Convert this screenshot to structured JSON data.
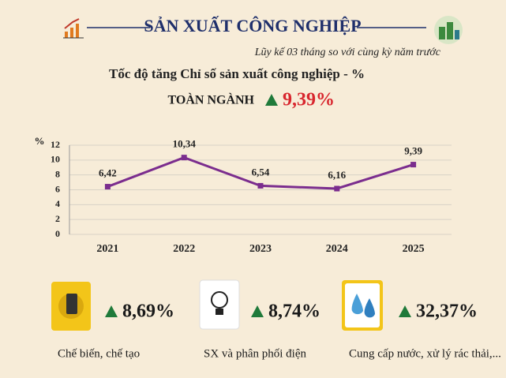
{
  "header": {
    "title": "SẢN XUẤT CÔNG NGHIỆP",
    "subtitle": "Lũy kế 03 tháng so với cùng kỳ năm trước",
    "chart_heading": "Tốc độ tăng Chỉ số sản xuất công nghiệp - %",
    "overall_label": "TOÀN NGÀNH",
    "overall_value": "9,39%"
  },
  "chart_data": {
    "type": "line",
    "y_label": "%",
    "categories": [
      "2021",
      "2022",
      "2023",
      "2024",
      "2025"
    ],
    "values": [
      6.42,
      10.34,
      6.54,
      6.16,
      9.39
    ],
    "value_labels": [
      "6,42",
      "10,34",
      "6,54",
      "6,16",
      "9,39"
    ],
    "color": "#7b2d8e",
    "ylim": [
      0,
      12
    ],
    "yticks": [
      0,
      2,
      4,
      6,
      8,
      10,
      12
    ],
    "grid": true
  },
  "sectors": [
    {
      "label": "Chế biến, chế tạo",
      "value": "8,69%"
    },
    {
      "label": "SX và phân phối điện",
      "value": "8,74%"
    },
    {
      "label": "Cung cấp nước, xử lý rác thải,...",
      "value": "32,37%"
    }
  ]
}
